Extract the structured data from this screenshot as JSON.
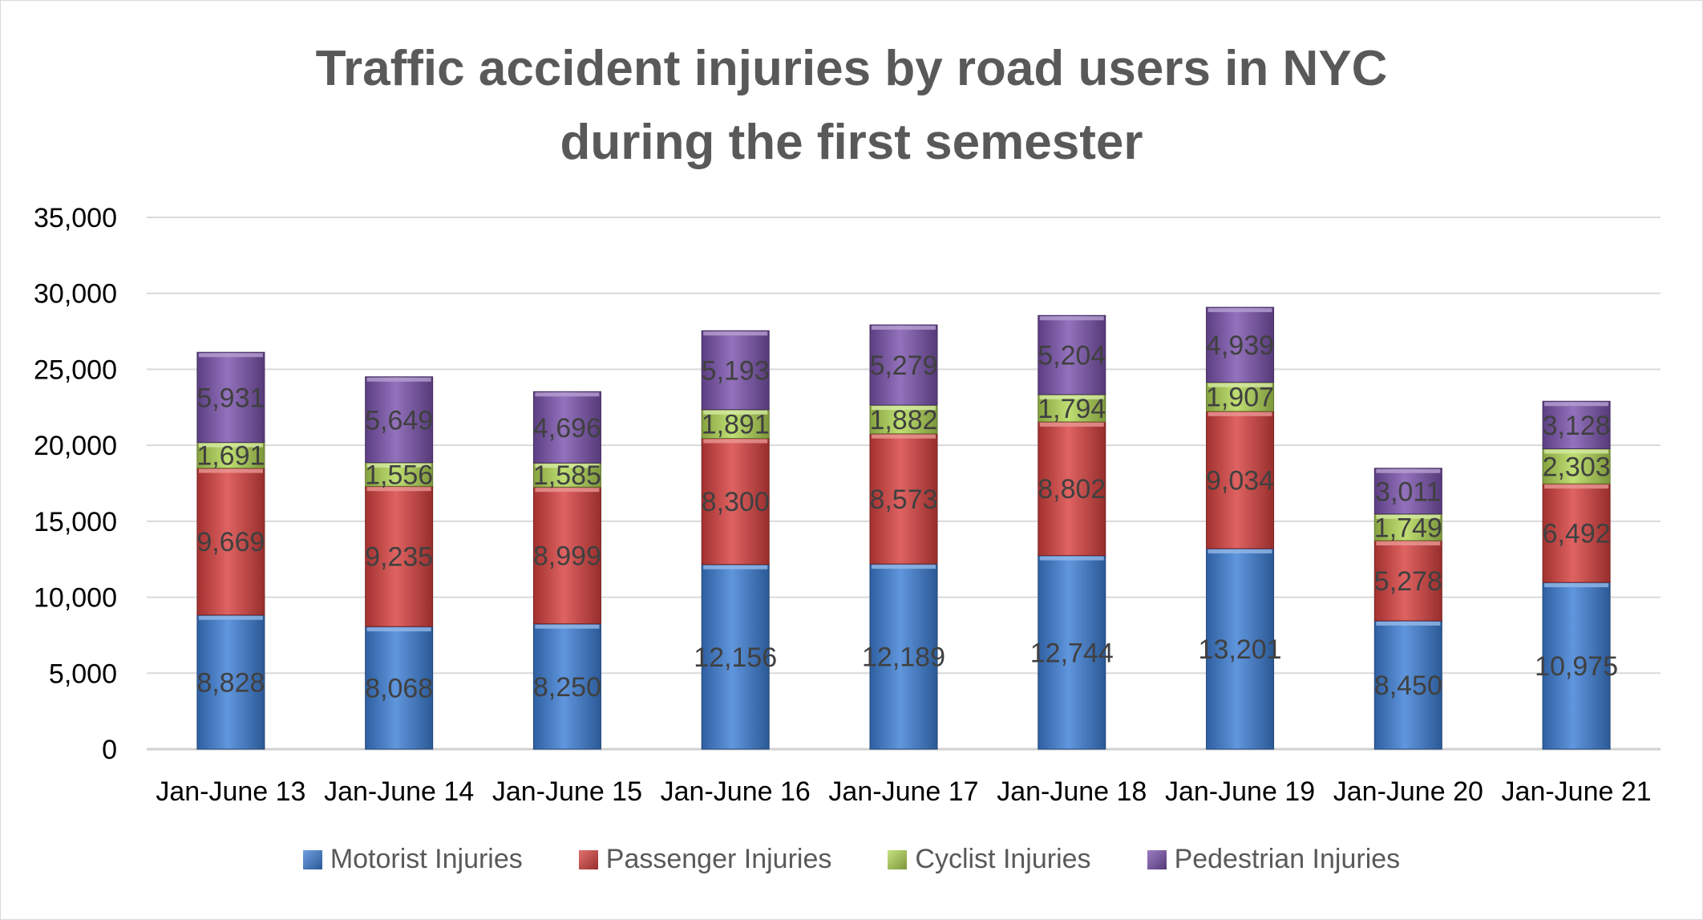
{
  "chart_data": {
    "type": "bar",
    "stacked": true,
    "title": "Traffic accident injuries  by road users in NYC during the first semester",
    "title_lines": [
      "Traffic accident injuries  by road users in NYC",
      "during the first semester"
    ],
    "categories": [
      "Jan-June 13",
      "Jan-June 14",
      "Jan-June 15",
      "Jan-June 16",
      "Jan-June 17",
      "Jan-June 18",
      "Jan-June 19",
      "Jan-June 20",
      "Jan-June 21"
    ],
    "series": [
      {
        "name": "Motorist Injuries",
        "color": "#3d7fd6",
        "values": [
          8828,
          8068,
          8250,
          12156,
          12189,
          12744,
          13201,
          8450,
          10975
        ]
      },
      {
        "name": "Passenger Injuries",
        "color": "#d8413f",
        "values": [
          9669,
          9235,
          8999,
          8300,
          8573,
          8802,
          9034,
          5278,
          6492
        ]
      },
      {
        "name": "Cyclist Injuries",
        "color": "#b2d855",
        "values": [
          1691,
          1556,
          1585,
          1891,
          1882,
          1794,
          1907,
          1749,
          2303
        ]
      },
      {
        "name": "Pedestrian Injuries",
        "color": "#7b53ad",
        "values": [
          5931,
          5649,
          4696,
          5193,
          5279,
          5204,
          4939,
          3011,
          3128
        ]
      }
    ],
    "ylim": [
      0,
      35000
    ],
    "yticks": [
      0,
      5000,
      10000,
      15000,
      20000,
      25000,
      30000,
      35000
    ],
    "ytick_labels": [
      "0",
      "5,000",
      "10,000",
      "15,000",
      "20,000",
      "25,000",
      "30,000",
      "35,000"
    ],
    "xlabel": "",
    "ylabel": "",
    "grid": true,
    "legend_position": "bottom"
  }
}
